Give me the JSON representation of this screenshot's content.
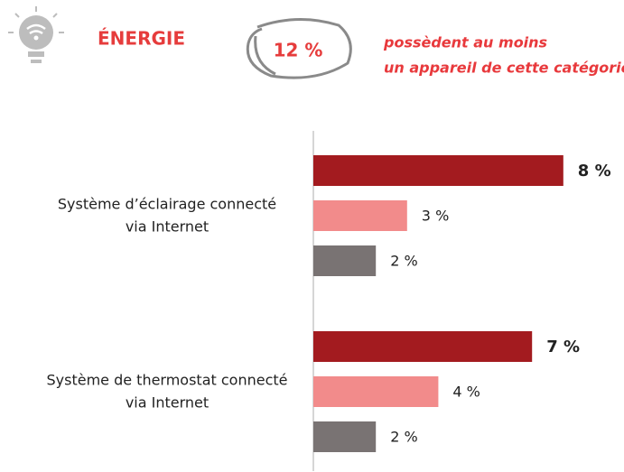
{
  "chart_data": {
    "type": "hbar",
    "header": {
      "title": "ÉNERGIE",
      "stat": {
        "value": 12,
        "label": "12 %"
      },
      "note": [
        "possèdent au moins",
        "un appareil de cette catégorie"
      ]
    },
    "categories": [
      [
        "Système d’éclairage connecté",
        "via Internet"
      ],
      [
        "Système de thermostat connecté",
        "via Internet"
      ]
    ],
    "series": [
      {
        "color": "#a31b1f",
        "values": [
          8,
          7
        ],
        "value_labels": [
          "8 %",
          "7 %"
        ]
      },
      {
        "color": "#f28b8b",
        "values": [
          3,
          4
        ],
        "value_labels": [
          "3 %",
          "4 %"
        ]
      },
      {
        "color": "#797373",
        "values": [
          2,
          2
        ],
        "value_labels": [
          "2 %",
          "2 %"
        ]
      }
    ],
    "xlim": [
      0,
      10
    ]
  }
}
